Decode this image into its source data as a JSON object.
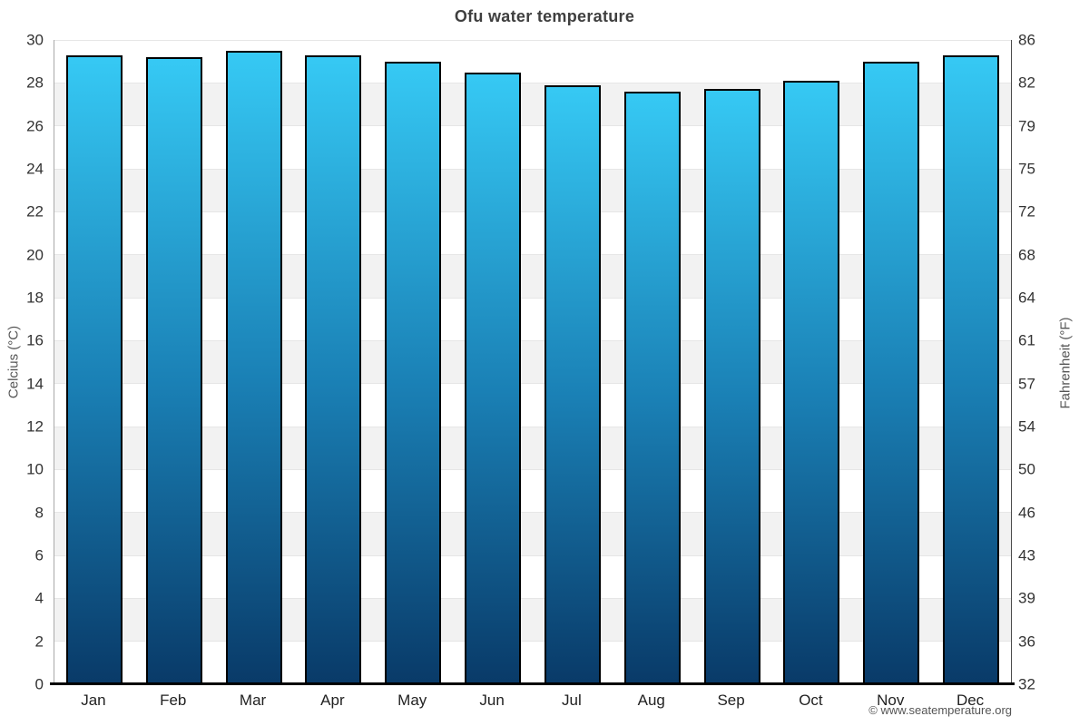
{
  "title": "Ofu water temperature",
  "credit": "© www.seatemperature.org",
  "chart_data": {
    "type": "bar",
    "title": "Ofu water temperature",
    "categories": [
      "Jan",
      "Feb",
      "Mar",
      "Apr",
      "May",
      "Jun",
      "Jul",
      "Aug",
      "Sep",
      "Oct",
      "Nov",
      "Dec"
    ],
    "values": [
      29.3,
      29.2,
      29.5,
      29.3,
      29.0,
      28.5,
      27.9,
      27.6,
      27.7,
      28.1,
      29.0,
      29.3
    ],
    "ylabel_left": "Celcius (°C)",
    "ylabel_right": "Fahrenheit (°F)",
    "ylim": [
      0,
      30
    ],
    "y_ticks_celsius": [
      0,
      2,
      4,
      6,
      8,
      10,
      12,
      14,
      16,
      18,
      20,
      22,
      24,
      26,
      28,
      30
    ],
    "y_ticks_fahrenheit_top_to_bottom": [
      "86",
      "82",
      "79",
      "75",
      "72",
      "68",
      "64",
      "61",
      "57",
      "54",
      "50",
      "46",
      "43",
      "39",
      "36",
      "32"
    ],
    "grid": "alternating-horizontal-bands",
    "legend": "none",
    "colors": {
      "bar_gradient_top": "#36c9f4",
      "bar_gradient_mid": "#1a80b5",
      "bar_gradient_bottom": "#093a68",
      "bar_border": "#000000",
      "band_fill": "#f2f2f2",
      "grid_line": "#e6e6e6",
      "axis_line": "#000000",
      "title_color": "#3f3f3f",
      "tick_color": "#333333",
      "credit_color": "#555555"
    }
  }
}
